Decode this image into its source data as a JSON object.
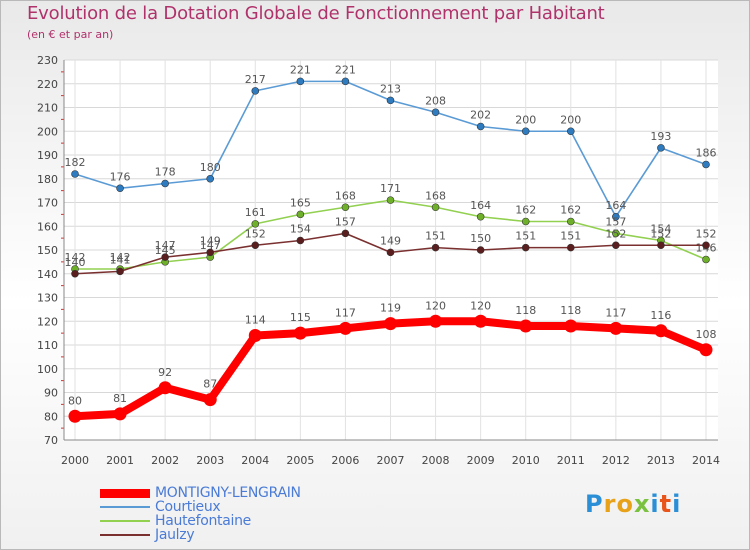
{
  "title": "Evolution de la Dotation Globale de Fonctionnement par Habitant",
  "subtitle": "(en € et par an)",
  "logo": {
    "letters": [
      "P",
      "r",
      "o",
      "x",
      "i",
      "t",
      "i"
    ],
    "colors": [
      "#2a8fd6",
      "#e8a21a",
      "#e8a21a",
      "#7ac13f",
      "#2a8fd6",
      "#e8541a",
      "#2a8fd6"
    ]
  },
  "chart_data": {
    "type": "line",
    "x": [
      "2000",
      "2001",
      "2002",
      "2003",
      "2004",
      "2005",
      "2006",
      "2007",
      "2008",
      "2009",
      "2010",
      "2011",
      "2012",
      "2013",
      "2014"
    ],
    "ylim": [
      70,
      230
    ],
    "yticks": [
      "70",
      "80",
      "90",
      "100",
      "110",
      "120",
      "130",
      "140",
      "150",
      "160",
      "170",
      "180",
      "190",
      "200",
      "210",
      "220",
      "230"
    ],
    "grid": true,
    "legend_position": "bottom-left",
    "series": [
      {
        "name": "Courtieux",
        "color": "#5b9bd5",
        "marker": "#2e7bc0",
        "values": [
          182,
          176,
          178,
          180,
          217,
          221,
          221,
          213,
          208,
          202,
          200,
          200,
          164,
          193,
          186
        ],
        "labels": [
          "182",
          "176",
          "178",
          "180",
          "217",
          "221",
          "221",
          "213",
          "208",
          "202",
          "200",
          "200",
          "164",
          "193",
          "186"
        ]
      },
      {
        "name": "Hautefontaine",
        "color": "#92d050",
        "marker": "#6fb02a",
        "values": [
          142,
          142,
          145,
          147,
          161,
          165,
          168,
          171,
          168,
          164,
          162,
          162,
          157,
          154,
          146
        ],
        "labels": [
          "142",
          "142",
          "145",
          "147",
          "161",
          "165",
          "168",
          "171",
          "168",
          "164",
          "162",
          "162",
          "157",
          "154",
          "146"
        ]
      },
      {
        "name": "Jaulzy",
        "color": "#7b3030",
        "marker": "#5a1e1e",
        "values": [
          140,
          141,
          147,
          149,
          152,
          154,
          157,
          149,
          151,
          150,
          151,
          151,
          152,
          152,
          152
        ],
        "labels": [
          "140",
          "141",
          "147",
          "149",
          "152",
          "154",
          "157",
          "149",
          "151",
          "150",
          "151",
          "151",
          "152",
          "152",
          "152"
        ]
      },
      {
        "name": "MONTIGNY-LENGRAIN",
        "color": "#ff0000",
        "marker": "#ff0000",
        "values": [
          80,
          81,
          92,
          87,
          114,
          115,
          117,
          119,
          120,
          120,
          118,
          118,
          117,
          116,
          108
        ],
        "labels": [
          "80",
          "81",
          "92",
          "87",
          "114",
          "115",
          "117",
          "119",
          "120",
          "120",
          "118",
          "118",
          "117",
          "116",
          "108"
        ]
      }
    ],
    "legend": [
      "MONTIGNY-LENGRAIN",
      "Courtieux",
      "Hautefontaine",
      "Jaulzy"
    ]
  }
}
